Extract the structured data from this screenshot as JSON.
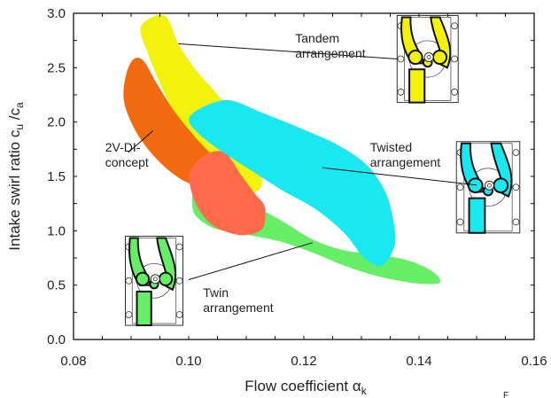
{
  "chart_data": {
    "type": "area",
    "title": "",
    "xlabel": "Flow coefficient  α",
    "xlabel_sub": "k",
    "ylabel": "Intake swirl ratio  c",
    "ylabel_sub1": "u",
    "ylabel_mid": " /c",
    "ylabel_sub2": "a",
    "xlim": [
      0.08,
      0.16
    ],
    "ylim": [
      0.0,
      3.0
    ],
    "x_ticks": [
      "0.08",
      "0.10",
      "0.12",
      "0.14",
      "0.16"
    ],
    "y_ticks": [
      "0.0",
      "0.5",
      "1.0",
      "1.5",
      "2.0",
      "2.5",
      "3.0"
    ],
    "grid": false,
    "legend": "none",
    "series": [
      {
        "name": "Tandem arrangement",
        "color": "#f2f20a",
        "label_lines": [
          "Tandem",
          "arrangement"
        ],
        "polygon": [
          [
            0.0917,
            2.88
          ],
          [
            0.0958,
            2.98
          ],
          [
            0.0982,
            2.72
          ],
          [
            0.1012,
            2.48
          ],
          [
            0.1055,
            2.22
          ],
          [
            0.1095,
            1.92
          ],
          [
            0.1118,
            1.65
          ],
          [
            0.1127,
            1.42
          ],
          [
            0.1105,
            1.35
          ],
          [
            0.1065,
            1.42
          ],
          [
            0.1025,
            1.68
          ],
          [
            0.0985,
            1.98
          ],
          [
            0.0955,
            2.3
          ],
          [
            0.093,
            2.62
          ]
        ]
      },
      {
        "name": "Twin arrangement",
        "color": "#66ee66",
        "label_lines": [
          "Twin",
          "arrangement"
        ],
        "polygon": [
          [
            0.1012,
            1.38
          ],
          [
            0.106,
            1.32
          ],
          [
            0.1115,
            1.22
          ],
          [
            0.1165,
            1.08
          ],
          [
            0.1215,
            0.92
          ],
          [
            0.127,
            0.82
          ],
          [
            0.133,
            0.78
          ],
          [
            0.1385,
            0.72
          ],
          [
            0.1425,
            0.62
          ],
          [
            0.1435,
            0.52
          ],
          [
            0.139,
            0.52
          ],
          [
            0.133,
            0.58
          ],
          [
            0.127,
            0.68
          ],
          [
            0.1215,
            0.8
          ],
          [
            0.116,
            0.9
          ],
          [
            0.1105,
            0.96
          ],
          [
            0.106,
            1.0
          ],
          [
            0.103,
            1.06
          ],
          [
            0.1008,
            1.18
          ]
        ]
      },
      {
        "name": "2V-DI-concept",
        "color": "#f26a10",
        "label_lines": [
          "2V-DI-",
          "concept"
        ],
        "polygon": [
          [
            0.0892,
            2.45
          ],
          [
            0.0905,
            2.58
          ],
          [
            0.0922,
            2.56
          ],
          [
            0.0945,
            2.35
          ],
          [
            0.0975,
            2.1
          ],
          [
            0.1008,
            1.88
          ],
          [
            0.104,
            1.7
          ],
          [
            0.1055,
            1.62
          ],
          [
            0.1068,
            1.5
          ],
          [
            0.1045,
            1.44
          ],
          [
            0.102,
            1.42
          ],
          [
            0.0995,
            1.45
          ],
          [
            0.096,
            1.58
          ],
          [
            0.0925,
            1.78
          ],
          [
            0.09,
            2.0
          ],
          [
            0.0887,
            2.22
          ]
        ]
      },
      {
        "name": "2V-DI-concept (lower)",
        "color": "#ff6a4a",
        "polygon": [
          [
            0.1003,
            1.55
          ],
          [
            0.103,
            1.7
          ],
          [
            0.1062,
            1.72
          ],
          [
            0.109,
            1.52
          ],
          [
            0.1115,
            1.34
          ],
          [
            0.1132,
            1.22
          ],
          [
            0.1128,
            1.02
          ],
          [
            0.1095,
            0.96
          ],
          [
            0.106,
            1.0
          ],
          [
            0.1035,
            1.08
          ],
          [
            0.1015,
            1.22
          ],
          [
            0.1003,
            1.4
          ]
        ]
      },
      {
        "name": "Twisted arrangement",
        "color": "#1ae8f0",
        "label_lines": [
          "Twisted",
          "arrangement"
        ],
        "polygon": [
          [
            0.1,
            2.02
          ],
          [
            0.1022,
            2.13
          ],
          [
            0.107,
            2.2
          ],
          [
            0.113,
            2.08
          ],
          [
            0.12,
            1.93
          ],
          [
            0.1262,
            1.78
          ],
          [
            0.131,
            1.6
          ],
          [
            0.1342,
            1.35
          ],
          [
            0.1357,
            1.05
          ],
          [
            0.1357,
            0.85
          ],
          [
            0.1335,
            0.68
          ],
          [
            0.1305,
            0.75
          ],
          [
            0.127,
            0.98
          ],
          [
            0.122,
            1.2
          ],
          [
            0.116,
            1.38
          ],
          [
            0.111,
            1.55
          ],
          [
            0.106,
            1.72
          ],
          [
            0.102,
            1.88
          ]
        ]
      }
    ],
    "annotations": [
      {
        "text_lines": [
          "Tandem",
          "arrangement"
        ],
        "text_anchor": [
          0.1185,
          2.73
        ],
        "to": [
          0.0982,
          2.72
        ],
        "from": [
          0.1362,
          2.58
        ]
      },
      {
        "text_lines": [
          "Twisted",
          "arrangement"
        ],
        "text_anchor": [
          0.1315,
          1.73
        ],
        "to": [
          0.1232,
          1.58
        ],
        "from": [
          0.15,
          1.42
        ]
      },
      {
        "text_lines": [
          "2V-DI-",
          "concept"
        ],
        "text_anchor": [
          0.0855,
          1.73
        ],
        "to": [
          0.0938,
          1.92
        ],
        "from": [
          0.0895,
          1.72
        ]
      },
      {
        "text_lines": [
          "Twin",
          "arrangement"
        ],
        "text_anchor": [
          0.1025,
          0.39
        ],
        "to": [
          0.1215,
          0.89
        ],
        "from": [
          0.1,
          0.55
        ]
      }
    ],
    "insets": [
      {
        "name": "Tandem arrangement sketch",
        "color": "#f2f20a",
        "x": [
          0.1362,
          0.1468
        ],
        "y": [
          2.18,
          2.98
        ]
      },
      {
        "name": "Twisted arrangement sketch",
        "color": "#1ae8f0",
        "x": [
          0.1465,
          0.1575
        ],
        "y": [
          0.98,
          1.82
        ]
      },
      {
        "name": "Twin arrangement sketch",
        "color": "#66ee66",
        "x": [
          0.089,
          0.099
        ],
        "y": [
          0.13,
          0.95
        ]
      }
    ]
  },
  "footer_mark": "F"
}
